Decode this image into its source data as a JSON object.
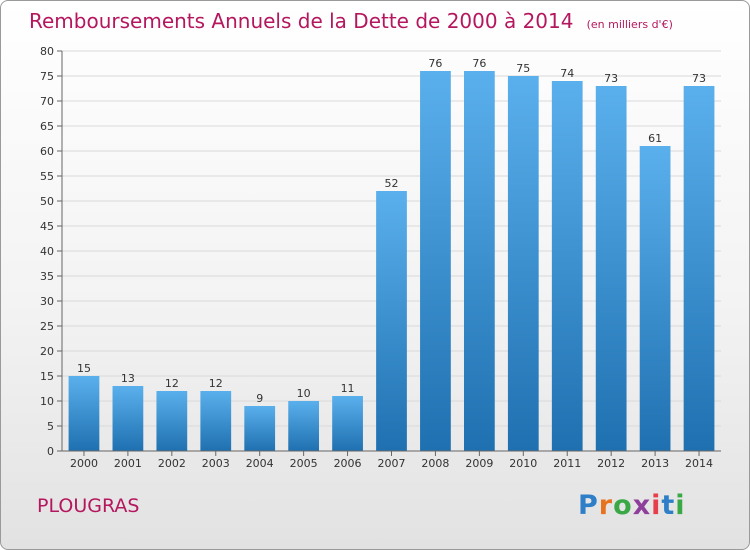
{
  "header": {
    "title": "Remboursements Annuels de la Dette de 2000 à 2014",
    "unit": "(en milliers d'€)"
  },
  "footer": {
    "commune": "PLOUGRAS",
    "logo_text": "Proxiti",
    "logo_colors": [
      "#2f7fc8",
      "#e8731f",
      "#3aa844",
      "#8e3e9b",
      "#e63e4a",
      "#2f7fc8",
      "#3aa844"
    ]
  },
  "colors": {
    "bar_light": "#5ab0ec",
    "bar_dark": "#1f70b0",
    "title": "#b5175e",
    "grid": "#d9d9d9"
  },
  "chart_data": {
    "type": "bar",
    "title": "Remboursements Annuels de la Dette de 2000 à 2014",
    "categories": [
      "2000",
      "2001",
      "2002",
      "2003",
      "2004",
      "2005",
      "2006",
      "2007",
      "2008",
      "2009",
      "2010",
      "2011",
      "2012",
      "2013",
      "2014"
    ],
    "values": [
      15,
      13,
      12,
      12,
      9,
      10,
      11,
      52,
      76,
      76,
      75,
      74,
      73,
      61,
      73
    ],
    "ylim": [
      0,
      80
    ],
    "yticks": [
      0,
      5,
      10,
      15,
      20,
      25,
      30,
      35,
      40,
      45,
      50,
      55,
      60,
      65,
      70,
      75,
      80
    ],
    "grid": true
  }
}
